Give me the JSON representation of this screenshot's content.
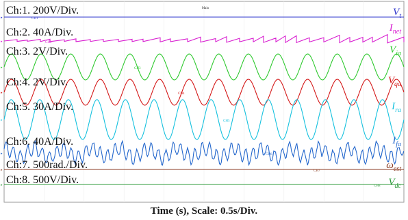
{
  "chart_data": {
    "type": "line",
    "x_label": "Time (s), Scale: 0.5s/Div.",
    "top_marker": "Main",
    "channels": [
      {
        "label": "Ch:1. 200V/Div.",
        "signal": "V",
        "sub": "t",
        "tag": "CH1",
        "color": "#2e35cc",
        "shape": "flat"
      },
      {
        "label": "Ch:2. 40A/Div.",
        "signal": "I",
        "sub": "net",
        "tag": "CH2",
        "color": "#d81fd0",
        "shape": "steps"
      },
      {
        "label": "Ch:3. 2V/Div.",
        "signal": "V",
        "sub": "ia",
        "tag": "CH3",
        "color": "#2fc92f",
        "shape": "sine",
        "cycles": 13.5,
        "amplitude_divs": 0.52
      },
      {
        "label": "Ch:4. 2V/Div.",
        "signal": "V",
        "sub": "qa",
        "tag": "CH4",
        "color": "#d41818",
        "shape": "sine",
        "cycles": 13.5,
        "amplitude_divs": 0.52
      },
      {
        "label": "Ch:5. 30A/Div.",
        "signal": "I",
        "sub": "ra",
        "tag": "CH5",
        "color": "#15c1de",
        "shape": "sine",
        "cycles": 14,
        "amplitude_divs": 0.8
      },
      {
        "label": "Ch:6. 40A/Div.",
        "signal": "I",
        "sub": "fa",
        "tag": "CH6",
        "color": "#2266cc",
        "shape": "noisy",
        "amplitude_divs": 0.5
      },
      {
        "label": "Ch:7. 500rad./Div.",
        "signal": "ω",
        "sub": "est",
        "tag": "CH7",
        "color": "#8a3a20",
        "shape": "flat"
      },
      {
        "label": "Ch:8. 500V/Div.",
        "signal": "V",
        "sub": "dc",
        "tag": "CH8",
        "color": "#2e9a3a",
        "shape": "flat"
      }
    ]
  }
}
